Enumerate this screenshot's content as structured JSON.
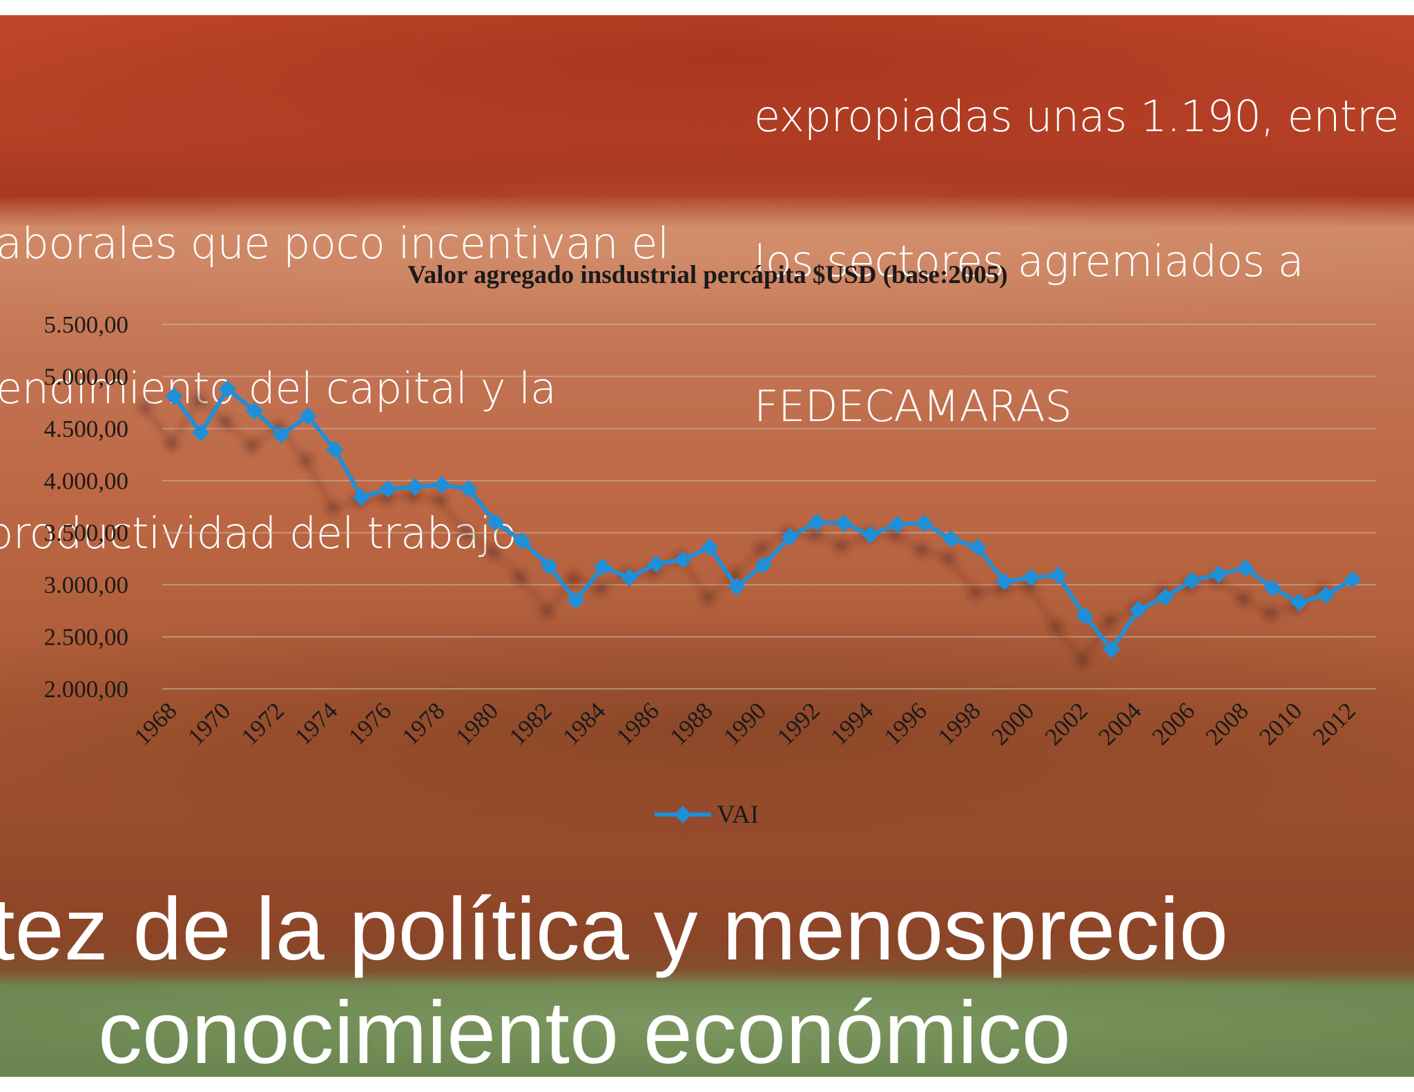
{
  "slide": {
    "left_text": {
      "line1": "",
      "line2": "aborales que poco incentivan el",
      "line3": "endimiento del capital y la",
      "line4": "productividad del trabajo"
    },
    "right_text": {
      "line1": "expropiadas unas 1.190, entre",
      "line2": "los sectores agremiados a",
      "line3": "FEDECAMARAS"
    },
    "bottom_text": {
      "line1": "tez de la política y menosprecio",
      "line2": "conocimiento económico"
    },
    "colors": {
      "top_band": "#a8391f",
      "middle_band": "#c37454",
      "bottom_band": "#6a8550",
      "series_line": "#1f8fd8"
    }
  },
  "chart_data": {
    "type": "line",
    "title": "Valor agregado insdustrial percápita $USD (base:2005)",
    "xlabel": "",
    "ylabel": "",
    "ylim": [
      2000,
      5500
    ],
    "y_ticks": [
      "2.000,00",
      "2.500,00",
      "3.000,00",
      "3.500,00",
      "4.000,00",
      "4.500,00",
      "5.000,00",
      "5.500,00"
    ],
    "x_tick_labels": [
      "1968",
      "1970",
      "1972",
      "1974",
      "1976",
      "1978",
      "1980",
      "1982",
      "1984",
      "1986",
      "1988",
      "1990",
      "1992",
      "1994",
      "1996",
      "1998",
      "2000",
      "2002",
      "2004",
      "2006",
      "2008",
      "2010",
      "2012"
    ],
    "grid": true,
    "legend_position": "bottom",
    "x": [
      1968,
      1969,
      1970,
      1971,
      1972,
      1973,
      1974,
      1975,
      1976,
      1977,
      1978,
      1979,
      1980,
      1981,
      1982,
      1983,
      1984,
      1985,
      1986,
      1987,
      1988,
      1989,
      1990,
      1991,
      1992,
      1993,
      1994,
      1995,
      1996,
      1997,
      1998,
      1999,
      2000,
      2001,
      2002,
      2003,
      2004,
      2005,
      2006,
      2007,
      2008,
      2009,
      2010,
      2011,
      2012
    ],
    "series": [
      {
        "name": "VAI",
        "values": [
          4810,
          4460,
          4880,
          4670,
          4440,
          4620,
          4300,
          3840,
          3920,
          3940,
          3960,
          3920,
          3600,
          3420,
          3180,
          2850,
          3170,
          3070,
          3200,
          3240,
          3360,
          2980,
          3190,
          3460,
          3600,
          3590,
          3480,
          3580,
          3590,
          3440,
          3360,
          3030,
          3070,
          3090,
          2700,
          2380,
          2760,
          2880,
          3040,
          3100,
          3160,
          2970,
          2830,
          2900,
          3050
        ]
      }
    ]
  }
}
